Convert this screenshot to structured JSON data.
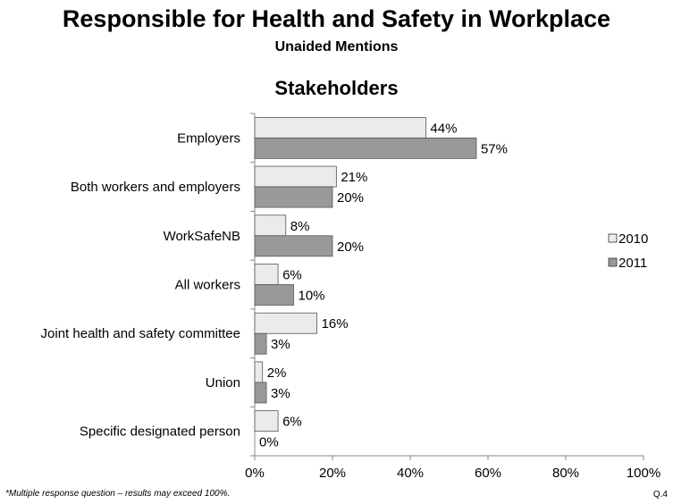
{
  "title": "Responsible for Health and Safety in Workplace",
  "subtitle": "Unaided Mentions",
  "section_title": "Stakeholders",
  "footnote": "*Multiple response question – results may exceed 100%.",
  "question_ref": "Q.4",
  "chart_data": {
    "type": "bar",
    "orientation": "horizontal",
    "categories": [
      "Employers",
      "Both workers and employers",
      "WorkSafeNB",
      "All workers",
      "Joint health and safety committee",
      "Union",
      "Specific designated person"
    ],
    "series": [
      {
        "name": "2010",
        "values": [
          44,
          21,
          8,
          6,
          16,
          2,
          6
        ],
        "color": "#ebebeb"
      },
      {
        "name": "2011",
        "values": [
          57,
          20,
          20,
          10,
          3,
          3,
          0
        ],
        "color": "#999999"
      }
    ],
    "value_labels_2010": [
      "44%",
      "21%",
      "8%",
      "6%",
      "16%",
      "2%",
      "6%"
    ],
    "value_labels_2011": [
      "57%",
      "20%",
      "20%",
      "10%",
      "3%",
      "3%",
      "0%"
    ],
    "xlim": [
      0,
      100
    ],
    "xticks": [
      "0%",
      "20%",
      "40%",
      "60%",
      "80%",
      "100%"
    ],
    "xtick_values": [
      0,
      20,
      40,
      60,
      80,
      100
    ],
    "legend_placement": "right",
    "grid": false
  }
}
